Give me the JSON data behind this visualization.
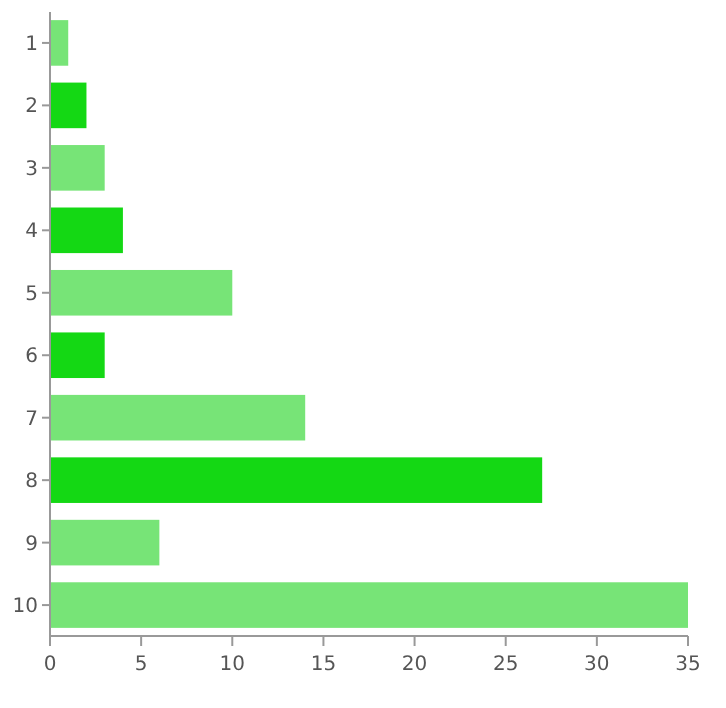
{
  "chart_data": {
    "type": "bar",
    "orientation": "horizontal",
    "categories": [
      "1",
      "2",
      "3",
      "4",
      "5",
      "6",
      "7",
      "8",
      "9",
      "10"
    ],
    "values": [
      1,
      2,
      3,
      4,
      10,
      3,
      14,
      27,
      6,
      35
    ],
    "colors": [
      "#77e477",
      "#14d814",
      "#77e477",
      "#14d814",
      "#77e477",
      "#14d814",
      "#77e477",
      "#14d814",
      "#77e477",
      "#77e477"
    ],
    "xlim": [
      0,
      35
    ],
    "xticks": [
      0,
      5,
      10,
      15,
      20,
      25,
      30,
      35
    ],
    "grid": false
  }
}
